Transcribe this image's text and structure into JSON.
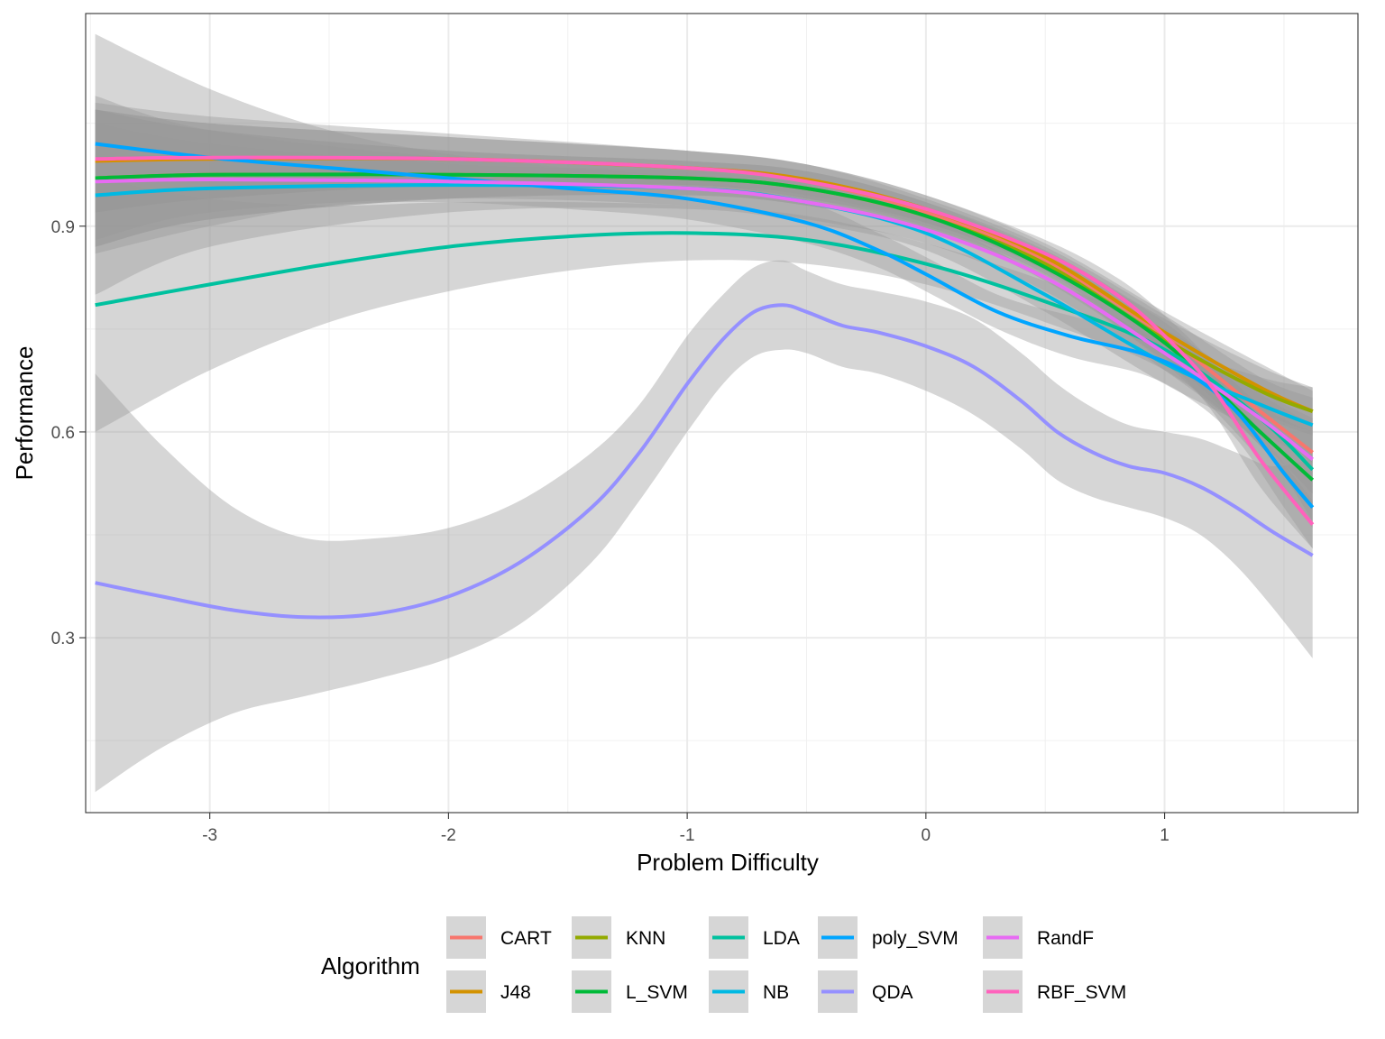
{
  "chart_data": {
    "type": "line",
    "xlabel": "Problem Difficulty",
    "ylabel": "Performance",
    "xlim": [
      -3.52,
      1.81
    ],
    "ylim": [
      0.045,
      1.21
    ],
    "x_ticks": [
      -3,
      -2,
      -1,
      0,
      1
    ],
    "x_tick_labels": [
      "-3",
      "-2",
      "-1",
      "0",
      "1"
    ],
    "y_ticks": [
      0.3,
      0.6,
      0.9
    ],
    "y_tick_labels": [
      "0.3",
      "0.6",
      "0.9"
    ],
    "grid": true,
    "legend": {
      "title": "Algorithm",
      "position": "bottom"
    },
    "series": [
      {
        "name": "CART",
        "color": "#F8766D",
        "x": [
          -3.48,
          -3,
          -2,
          -1,
          -0.5,
          0,
          0.5,
          1,
          1.4,
          1.62
        ],
        "y": [
          0.995,
          0.998,
          0.998,
          0.985,
          0.965,
          0.92,
          0.85,
          0.74,
          0.63,
          0.57
        ],
        "lower": [
          0.92,
          0.94,
          0.96,
          0.96,
          0.94,
          0.9,
          0.83,
          0.71,
          0.58,
          0.49
        ],
        "upper": [
          1.07,
          1.05,
          1.03,
          1.01,
          0.99,
          0.94,
          0.87,
          0.77,
          0.68,
          0.65
        ]
      },
      {
        "name": "J48",
        "color": "#D39200",
        "x": [
          -3.48,
          -3,
          -2,
          -1,
          -0.5,
          0,
          0.5,
          1,
          1.4,
          1.62
        ],
        "y": [
          0.995,
          0.998,
          0.998,
          0.985,
          0.968,
          0.925,
          0.855,
          0.745,
          0.665,
          0.63
        ],
        "lower": [
          0.92,
          0.94,
          0.96,
          0.96,
          0.945,
          0.905,
          0.835,
          0.715,
          0.63,
          0.6
        ],
        "upper": [
          1.07,
          1.05,
          1.03,
          1.01,
          0.99,
          0.945,
          0.875,
          0.775,
          0.7,
          0.66
        ]
      },
      {
        "name": "KNN",
        "color": "#93AA00",
        "x": [
          -3.48,
          -3,
          -2,
          -1,
          -0.5,
          0,
          0.5,
          1,
          1.4,
          1.62
        ],
        "y": [
          0.97,
          0.975,
          0.975,
          0.97,
          0.955,
          0.915,
          0.845,
          0.735,
          0.66,
          0.63
        ],
        "lower": [
          0.87,
          0.91,
          0.94,
          0.945,
          0.93,
          0.895,
          0.825,
          0.705,
          0.625,
          0.595
        ],
        "upper": [
          1.07,
          1.04,
          1.01,
          0.995,
          0.98,
          0.935,
          0.865,
          0.765,
          0.695,
          0.665
        ]
      },
      {
        "name": "L_SVM",
        "color": "#00BA38",
        "x": [
          -3.48,
          -3,
          -2,
          -1,
          -0.5,
          0,
          0.5,
          1,
          1.4,
          1.62
        ],
        "y": [
          0.97,
          0.975,
          0.975,
          0.97,
          0.955,
          0.915,
          0.84,
          0.73,
          0.6,
          0.53
        ],
        "lower": [
          0.87,
          0.91,
          0.94,
          0.945,
          0.93,
          0.895,
          0.82,
          0.7,
          0.56,
          0.46
        ],
        "upper": [
          1.07,
          1.04,
          1.01,
          0.995,
          0.98,
          0.935,
          0.86,
          0.76,
          0.64,
          0.6
        ]
      },
      {
        "name": "LDA",
        "color": "#00C19F",
        "x": [
          -3.48,
          -3,
          -2.5,
          -2,
          -1.5,
          -1,
          -0.5,
          0,
          0.5,
          1,
          1.4,
          1.62
        ],
        "y": [
          0.785,
          0.815,
          0.845,
          0.87,
          0.885,
          0.89,
          0.88,
          0.845,
          0.79,
          0.72,
          0.62,
          0.545
        ],
        "lower": [
          0.6,
          0.69,
          0.76,
          0.805,
          0.835,
          0.85,
          0.845,
          0.815,
          0.76,
          0.69,
          0.58,
          0.47
        ],
        "upper": [
          0.97,
          0.94,
          0.93,
          0.935,
          0.935,
          0.93,
          0.915,
          0.875,
          0.82,
          0.75,
          0.66,
          0.62
        ]
      },
      {
        "name": "NB",
        "color": "#00B9E3",
        "x": [
          -3.48,
          -3,
          -2,
          -1,
          -0.5,
          0,
          0.5,
          1,
          1.4,
          1.62
        ],
        "y": [
          0.945,
          0.955,
          0.96,
          0.955,
          0.935,
          0.89,
          0.8,
          0.7,
          0.64,
          0.61
        ],
        "lower": [
          0.8,
          0.87,
          0.92,
          0.925,
          0.905,
          0.865,
          0.775,
          0.67,
          0.6,
          0.555
        ],
        "upper": [
          1.09,
          1.04,
          1.0,
          0.985,
          0.965,
          0.915,
          0.825,
          0.73,
          0.68,
          0.665
        ]
      },
      {
        "name": "poly_SVM",
        "color": "#00A5FF",
        "x": [
          -3.48,
          -3,
          -2.5,
          -2,
          -1.5,
          -1,
          -0.5,
          -0.2,
          0,
          0.3,
          0.6,
          0.9,
          1.1,
          1.3,
          1.5,
          1.62
        ],
        "y": [
          1.02,
          1.0,
          0.985,
          0.97,
          0.955,
          0.94,
          0.905,
          0.865,
          0.83,
          0.775,
          0.74,
          0.715,
          0.685,
          0.63,
          0.54,
          0.49
        ],
        "lower": [
          0.86,
          0.9,
          0.93,
          0.935,
          0.925,
          0.91,
          0.875,
          0.84,
          0.805,
          0.75,
          0.71,
          0.685,
          0.65,
          0.59,
          0.49,
          0.43
        ],
        "upper": [
          1.18,
          1.1,
          1.04,
          1.005,
          0.985,
          0.97,
          0.935,
          0.89,
          0.855,
          0.8,
          0.77,
          0.745,
          0.72,
          0.67,
          0.59,
          0.55
        ]
      },
      {
        "name": "QDA",
        "color": "#9590FF",
        "x": [
          -3.48,
          -3.2,
          -2.9,
          -2.6,
          -2.3,
          -2.0,
          -1.7,
          -1.4,
          -1.2,
          -1.0,
          -0.85,
          -0.72,
          -0.6,
          -0.5,
          -0.35,
          -0.2,
          0.0,
          0.2,
          0.4,
          0.55,
          0.7,
          0.85,
          1.0,
          1.15,
          1.3,
          1.45,
          1.62
        ],
        "y": [
          0.38,
          0.36,
          0.34,
          0.33,
          0.335,
          0.36,
          0.41,
          0.49,
          0.57,
          0.67,
          0.735,
          0.775,
          0.785,
          0.775,
          0.755,
          0.745,
          0.725,
          0.695,
          0.645,
          0.6,
          0.57,
          0.55,
          0.54,
          0.52,
          0.49,
          0.455,
          0.42
        ],
        "lower": [
          0.075,
          0.14,
          0.19,
          0.215,
          0.24,
          0.27,
          0.32,
          0.41,
          0.5,
          0.6,
          0.67,
          0.71,
          0.72,
          0.715,
          0.695,
          0.685,
          0.66,
          0.625,
          0.575,
          0.53,
          0.505,
          0.49,
          0.475,
          0.45,
          0.405,
          0.345,
          0.27
        ],
        "upper": [
          0.685,
          0.58,
          0.49,
          0.445,
          0.445,
          0.46,
          0.5,
          0.57,
          0.64,
          0.74,
          0.8,
          0.84,
          0.85,
          0.835,
          0.815,
          0.805,
          0.79,
          0.765,
          0.715,
          0.67,
          0.635,
          0.61,
          0.6,
          0.59,
          0.57,
          0.55,
          0.56
        ]
      },
      {
        "name": "RandF",
        "color": "#E76BF3",
        "x": [
          -3.48,
          -3,
          -2,
          -1,
          -0.5,
          0,
          0.5,
          1,
          1.4,
          1.62
        ],
        "y": [
          0.965,
          0.968,
          0.965,
          0.955,
          0.935,
          0.895,
          0.825,
          0.715,
          0.62,
          0.56
        ],
        "lower": [
          0.88,
          0.92,
          0.94,
          0.93,
          0.91,
          0.875,
          0.805,
          0.69,
          0.585,
          0.51
        ],
        "upper": [
          1.05,
          1.02,
          0.99,
          0.98,
          0.96,
          0.915,
          0.845,
          0.74,
          0.655,
          0.61
        ]
      },
      {
        "name": "RBF_SVM",
        "color": "#FF62BC",
        "x": [
          -3.48,
          -3,
          -2,
          -1,
          -0.5,
          0,
          0.5,
          0.8,
          1.0,
          1.2,
          1.4,
          1.62
        ],
        "y": [
          0.998,
          1.0,
          0.998,
          0.985,
          0.965,
          0.925,
          0.86,
          0.8,
          0.74,
          0.665,
          0.56,
          0.465
        ],
        "lower": [
          0.92,
          0.94,
          0.96,
          0.96,
          0.94,
          0.905,
          0.84,
          0.775,
          0.71,
          0.63,
          0.52,
          0.43
        ],
        "upper": [
          1.08,
          1.06,
          1.035,
          1.01,
          0.99,
          0.945,
          0.88,
          0.825,
          0.77,
          0.7,
          0.6,
          0.5
        ]
      }
    ]
  }
}
